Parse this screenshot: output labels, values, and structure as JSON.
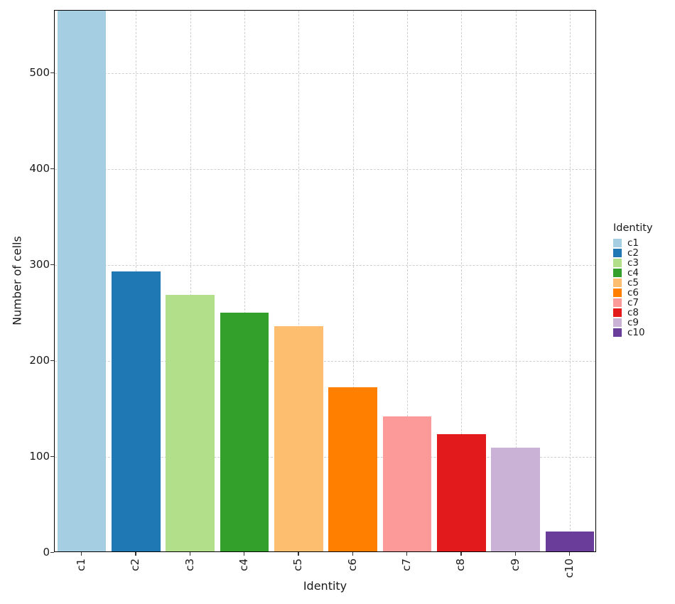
{
  "chart_data": {
    "type": "bar",
    "title": "",
    "xlabel": "Identity",
    "ylabel": "Number of cells",
    "categories": [
      "c1",
      "c2",
      "c3",
      "c4",
      "c5",
      "c6",
      "c7",
      "c8",
      "c9",
      "c10"
    ],
    "values": [
      565,
      292,
      267,
      249,
      235,
      171,
      141,
      122,
      108,
      21
    ],
    "colors": [
      "#a6cee3",
      "#1f78b4",
      "#b2df8a",
      "#33a02c",
      "#fdbf6f",
      "#ff7f00",
      "#fb9a99",
      "#e31a1c",
      "#cab2d6",
      "#6a3d9a"
    ],
    "ylim": [
      0,
      565
    ],
    "yticks": [
      0,
      100,
      200,
      300,
      400,
      500
    ],
    "grid": true,
    "legend": {
      "title": "Identity",
      "position": "right",
      "entries": [
        "c1",
        "c2",
        "c3",
        "c4",
        "c5",
        "c6",
        "c7",
        "c8",
        "c9",
        "c10"
      ]
    },
    "xtick_rotation": 90
  }
}
